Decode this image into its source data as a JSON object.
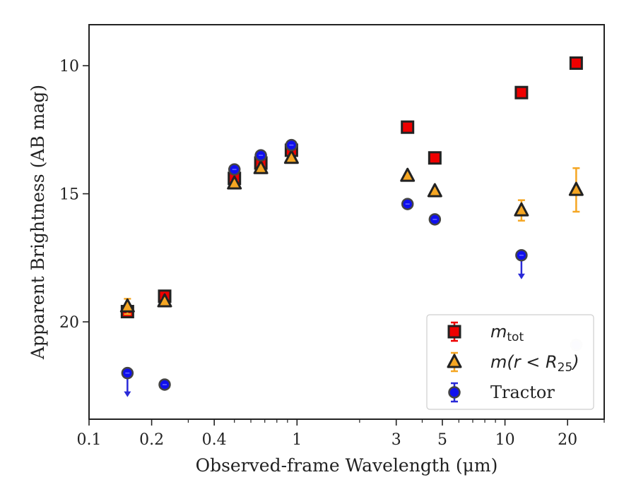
{
  "chart_data": {
    "type": "scatter",
    "title": "",
    "xlabel": "Observed-frame Wavelength (μm)",
    "ylabel": "Apparent Brightness (AB mag)",
    "xscale": "log",
    "xlim": [
      0.1,
      30
    ],
    "ylim": [
      23.8,
      8.4
    ],
    "y_inverted": true,
    "xticks": [
      {
        "value": 0.1,
        "label": "0.1"
      },
      {
        "value": 0.2,
        "label": "0.2"
      },
      {
        "value": 0.4,
        "label": "0.4"
      },
      {
        "value": 1,
        "label": "1"
      },
      {
        "value": 3,
        "label": "3"
      },
      {
        "value": 5,
        "label": "5"
      },
      {
        "value": 10,
        "label": "10"
      },
      {
        "value": 20,
        "label": "20"
      }
    ],
    "yticks": [
      {
        "value": 10,
        "label": "10"
      },
      {
        "value": 15,
        "label": "15"
      },
      {
        "value": 20,
        "label": "20"
      }
    ],
    "grid": false,
    "legend_position": "bottom-right",
    "series": [
      {
        "name": "m_tot",
        "legend_main": "m",
        "legend_sub": "tot",
        "marker": "square",
        "color": "#ee0000",
        "edge_color": "#222222",
        "error_color": "#ee0000",
        "points": [
          {
            "x": 0.153,
            "y": 19.6,
            "err": 0.1
          },
          {
            "x": 0.231,
            "y": 19.0,
            "err": 0.1
          },
          {
            "x": 0.5,
            "y": 14.4,
            "err": 0.1
          },
          {
            "x": 0.67,
            "y": 13.8,
            "err": 0.1
          },
          {
            "x": 0.94,
            "y": 13.3,
            "err": 0.1
          },
          {
            "x": 3.4,
            "y": 12.4,
            "err": 0.05
          },
          {
            "x": 4.6,
            "y": 13.6,
            "err": 0.05
          },
          {
            "x": 12.0,
            "y": 11.05,
            "err": 0.05
          },
          {
            "x": 22.0,
            "y": 9.9,
            "err": 0.05
          }
        ]
      },
      {
        "name": "m(r<R25)",
        "legend_main": "m(r < R",
        "legend_sub": "25",
        "legend_tail": ")",
        "marker": "triangle",
        "color": "#f5a623",
        "edge_color": "#222222",
        "error_color": "#f5a623",
        "points": [
          {
            "x": 0.153,
            "y": 19.4,
            "err": 0.3
          },
          {
            "x": 0.231,
            "y": 19.2,
            "err": 0.1
          },
          {
            "x": 0.5,
            "y": 14.6,
            "err": 0.1
          },
          {
            "x": 0.67,
            "y": 14.0,
            "err": 0.1
          },
          {
            "x": 0.94,
            "y": 13.6,
            "err": 0.1
          },
          {
            "x": 3.4,
            "y": 14.3,
            "err": 0.05
          },
          {
            "x": 4.6,
            "y": 14.9,
            "err": 0.05
          },
          {
            "x": 12.0,
            "y": 15.65,
            "err": 0.4
          },
          {
            "x": 22.0,
            "y": 14.85,
            "err": 0.85
          }
        ]
      },
      {
        "name": "Tractor",
        "legend_main": "Tractor",
        "marker": "circle",
        "color": "#1010ee",
        "edge_color": "#444444",
        "error_color": "#2a2ad8",
        "points": [
          {
            "x": 0.153,
            "y": 22.0,
            "upper_limit": true
          },
          {
            "x": 0.231,
            "y": 22.45
          },
          {
            "x": 0.5,
            "y": 14.05
          },
          {
            "x": 0.67,
            "y": 13.5
          },
          {
            "x": 0.94,
            "y": 13.1
          },
          {
            "x": 3.4,
            "y": 15.4
          },
          {
            "x": 4.6,
            "y": 16.0
          },
          {
            "x": 12.0,
            "y": 17.4,
            "upper_limit": true
          },
          {
            "x": 22.0,
            "y": 20.9,
            "faded": true
          }
        ]
      }
    ]
  }
}
